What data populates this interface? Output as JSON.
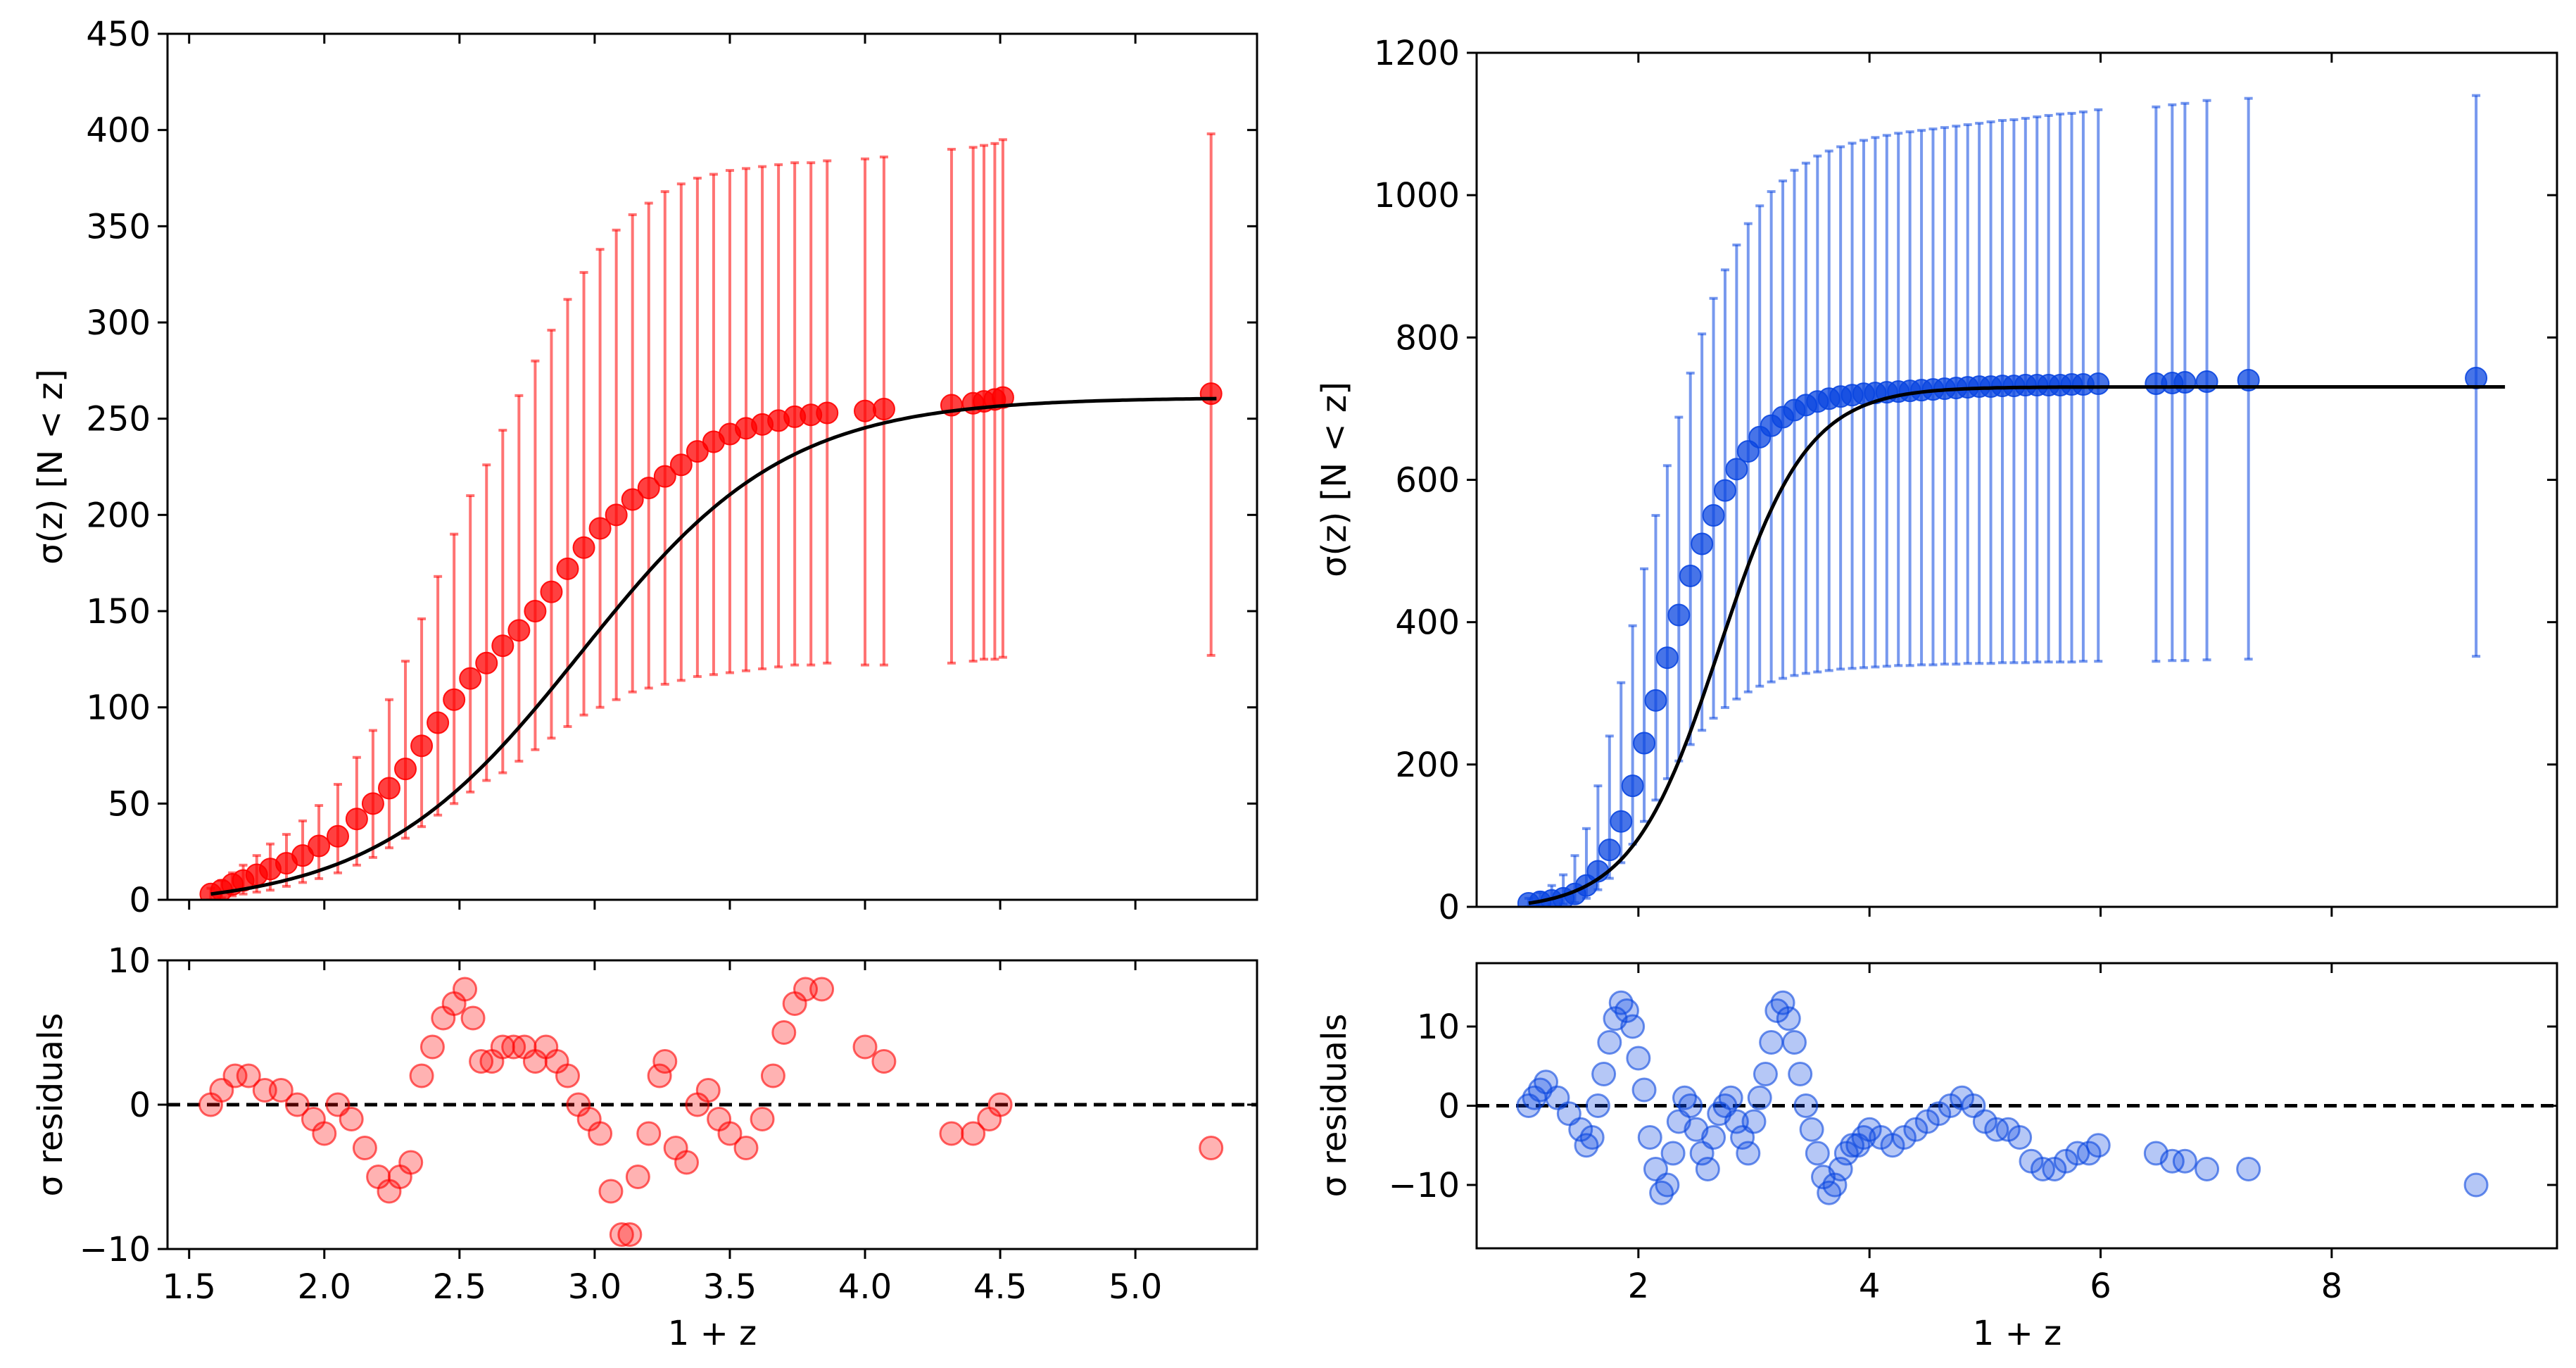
{
  "colors": {
    "red": "#ff0000",
    "blue": "#0a46e0",
    "fit": "#000000",
    "zero_line": "#000000"
  },
  "chart_data": [
    {
      "id": "left-main",
      "type": "scatter",
      "panel": "left",
      "xlabel": "",
      "ylabel": "σ(z) [N < z]",
      "xlim": [
        1.42,
        5.45
      ],
      "ylim": [
        0,
        450
      ],
      "xticks": [
        1.5,
        2.0,
        2.5,
        3.0,
        3.5,
        4.0,
        4.5,
        5.0
      ],
      "yticks": [
        0,
        50,
        100,
        150,
        200,
        250,
        300,
        350,
        400,
        450
      ],
      "ytick_labels": [
        "0",
        "50",
        "100",
        "150",
        "200",
        "250",
        "300",
        "350",
        "400",
        "450"
      ],
      "fit": {
        "type": "logistic",
        "A": 265,
        "x0": 2.95,
        "s": 0.38
      },
      "series": [
        {
          "name": "data",
          "color": "#ff0000",
          "x": [
            1.58,
            1.62,
            1.66,
            1.7,
            1.75,
            1.8,
            1.86,
            1.92,
            1.98,
            2.05,
            2.12,
            2.18,
            2.24,
            2.3,
            2.36,
            2.42,
            2.48,
            2.54,
            2.6,
            2.66,
            2.72,
            2.78,
            2.84,
            2.9,
            2.96,
            3.02,
            3.08,
            3.14,
            3.2,
            3.26,
            3.32,
            3.38,
            3.44,
            3.5,
            3.56,
            3.62,
            3.68,
            3.74,
            3.8,
            3.86,
            4.0,
            4.07,
            4.32,
            4.4,
            4.44,
            4.48,
            4.51,
            5.28
          ],
          "y": [
            3,
            5,
            8,
            10,
            13,
            16,
            19,
            23,
            28,
            33,
            42,
            50,
            58,
            68,
            80,
            92,
            104,
            115,
            123,
            132,
            140,
            150,
            160,
            172,
            183,
            193,
            200,
            208,
            214,
            220,
            226,
            233,
            238,
            242,
            245,
            247,
            249,
            251,
            252,
            253,
            254,
            255,
            257,
            258,
            259,
            260,
            261,
            263
          ],
          "yerr_low": [
            0,
            1,
            2,
            3,
            4,
            5,
            7,
            9,
            11,
            14,
            18,
            22,
            27,
            32,
            38,
            44,
            50,
            56,
            62,
            66,
            72,
            78,
            84,
            90,
            96,
            100,
            104,
            108,
            110,
            112,
            114,
            116,
            117,
            118,
            119,
            120,
            121,
            122,
            122,
            123,
            122,
            122,
            123,
            124,
            125,
            125,
            126,
            127
          ],
          "yerr_high": [
            6,
            10,
            14,
            18,
            23,
            29,
            34,
            41,
            49,
            60,
            74,
            88,
            104,
            124,
            146,
            168,
            190,
            210,
            226,
            244,
            262,
            280,
            296,
            312,
            326,
            338,
            348,
            356,
            362,
            368,
            372,
            375,
            377,
            379,
            380,
            381,
            382,
            383,
            383,
            384,
            385,
            386,
            390,
            391,
            392,
            393,
            395,
            398
          ]
        }
      ]
    },
    {
      "id": "left-resid",
      "type": "scatter",
      "panel": "left",
      "xlabel": "1 + z",
      "ylabel": "σ residuals",
      "xlim": [
        1.42,
        5.45
      ],
      "ylim": [
        -10,
        10
      ],
      "xticks": [
        1.5,
        2.0,
        2.5,
        3.0,
        3.5,
        4.0,
        4.5,
        5.0
      ],
      "xtick_labels": [
        "1.5",
        "2.0",
        "2.5",
        "3.0",
        "3.5",
        "4.0",
        "4.5",
        "5.0"
      ],
      "yticks": [
        -10,
        0,
        10
      ],
      "ytick_labels": [
        "−10",
        "0",
        "10"
      ],
      "zero_line": true,
      "series": [
        {
          "name": "residuals",
          "color": "#ff0000",
          "x": [
            1.58,
            1.62,
            1.67,
            1.72,
            1.78,
            1.84,
            1.9,
            1.96,
            2.0,
            2.05,
            2.1,
            2.15,
            2.2,
            2.24,
            2.28,
            2.32,
            2.36,
            2.4,
            2.44,
            2.48,
            2.52,
            2.55,
            2.58,
            2.62,
            2.66,
            2.7,
            2.74,
            2.78,
            2.82,
            2.86,
            2.9,
            2.94,
            2.98,
            3.02,
            3.06,
            3.1,
            3.13,
            3.16,
            3.2,
            3.24,
            3.26,
            3.3,
            3.34,
            3.38,
            3.42,
            3.46,
            3.5,
            3.56,
            3.62,
            3.66,
            3.7,
            3.74,
            3.78,
            3.84,
            4.0,
            4.07,
            4.32,
            4.4,
            4.46,
            4.5,
            5.28
          ],
          "y": [
            0,
            1,
            2,
            2,
            1,
            1,
            0,
            -1,
            -2,
            0,
            -1,
            -3,
            -5,
            -6,
            -5,
            -4,
            2,
            4,
            6,
            7,
            8,
            6,
            3,
            3,
            4,
            4,
            4,
            3,
            4,
            3,
            2,
            0,
            -1,
            -2,
            -6,
            -9,
            -9,
            -5,
            -2,
            2,
            3,
            -3,
            -4,
            0,
            1,
            -1,
            -2,
            -3,
            -1,
            2,
            5,
            7,
            8,
            8,
            4,
            3,
            -2,
            -2,
            -1,
            0,
            -3
          ]
        }
      ]
    },
    {
      "id": "right-main",
      "type": "scatter",
      "panel": "right",
      "xlabel": "",
      "ylabel": "σ(z) [N < z]",
      "xlim": [
        0.6,
        9.95
      ],
      "ylim": [
        0,
        1200
      ],
      "xticks": [
        2,
        4,
        6,
        8
      ],
      "yticks": [
        0,
        200,
        400,
        600,
        800,
        1000,
        1200
      ],
      "ytick_labels": [
        "0",
        "200",
        "400",
        "600",
        "800",
        "1000",
        "1200"
      ],
      "fit": {
        "type": "logistic",
        "A": 735,
        "x0": 2.7,
        "s": 0.38
      },
      "series": [
        {
          "name": "data",
          "color": "#0a46e0",
          "x": [
            1.05,
            1.15,
            1.25,
            1.35,
            1.45,
            1.55,
            1.65,
            1.75,
            1.85,
            1.95,
            2.05,
            2.15,
            2.25,
            2.35,
            2.45,
            2.55,
            2.65,
            2.75,
            2.85,
            2.95,
            3.05,
            3.15,
            3.25,
            3.35,
            3.45,
            3.55,
            3.65,
            3.75,
            3.85,
            3.95,
            4.05,
            4.15,
            4.25,
            4.35,
            4.45,
            4.55,
            4.65,
            4.75,
            4.85,
            4.95,
            5.05,
            5.15,
            5.25,
            5.35,
            5.45,
            5.55,
            5.65,
            5.75,
            5.85,
            5.98,
            6.48,
            6.62,
            6.73,
            6.92,
            7.28,
            9.25
          ],
          "y": [
            5,
            7,
            9,
            12,
            18,
            30,
            50,
            80,
            120,
            170,
            230,
            290,
            350,
            410,
            465,
            510,
            550,
            585,
            615,
            640,
            660,
            676,
            688,
            698,
            705,
            710,
            714,
            717,
            719,
            721,
            722,
            723,
            724,
            725,
            726,
            727,
            728,
            729,
            730,
            731,
            731,
            732,
            732,
            733,
            733,
            733,
            733,
            734,
            734,
            735,
            735,
            736,
            737,
            738,
            740,
            743
          ],
          "yerr_low": [
            0,
            2,
            3,
            4,
            6,
            12,
            24,
            40,
            62,
            88,
            120,
            150,
            180,
            205,
            228,
            248,
            265,
            280,
            292,
            302,
            310,
            316,
            321,
            325,
            328,
            330,
            332,
            334,
            335,
            336,
            337,
            338,
            339,
            339,
            340,
            340,
            341,
            341,
            342,
            342,
            342,
            343,
            343,
            343,
            344,
            344,
            344,
            344,
            345,
            345,
            345,
            346,
            346,
            347,
            348,
            352
          ],
          "yerr_high": [
            12,
            20,
            30,
            45,
            72,
            110,
            170,
            240,
            315,
            395,
            475,
            550,
            620,
            688,
            750,
            805,
            855,
            895,
            930,
            960,
            985,
            1005,
            1020,
            1035,
            1045,
            1055,
            1062,
            1068,
            1073,
            1077,
            1081,
            1084,
            1087,
            1089,
            1091,
            1093,
            1095,
            1097,
            1099,
            1101,
            1103,
            1105,
            1106,
            1108,
            1110,
            1112,
            1114,
            1115,
            1117,
            1120,
            1124,
            1127,
            1129,
            1133,
            1136,
            1140
          ]
        }
      ]
    },
    {
      "id": "right-resid",
      "type": "scatter",
      "panel": "right",
      "xlabel": "1 + z",
      "ylabel": "σ residuals",
      "xlim": [
        0.6,
        9.95
      ],
      "ylim": [
        -18,
        18
      ],
      "xticks": [
        2,
        4,
        6,
        8
      ],
      "xtick_labels": [
        "2",
        "4",
        "6",
        "8"
      ],
      "yticks": [
        -10,
        0,
        10
      ],
      "ytick_labels": [
        "−10",
        "0",
        "10"
      ],
      "zero_line": true,
      "series": [
        {
          "name": "residuals",
          "color": "#0a46e0",
          "x": [
            1.05,
            1.1,
            1.15,
            1.2,
            1.3,
            1.4,
            1.5,
            1.55,
            1.6,
            1.65,
            1.7,
            1.75,
            1.8,
            1.85,
            1.9,
            1.95,
            2.0,
            2.05,
            2.1,
            2.15,
            2.2,
            2.25,
            2.3,
            2.35,
            2.4,
            2.45,
            2.5,
            2.55,
            2.6,
            2.65,
            2.7,
            2.75,
            2.8,
            2.85,
            2.9,
            2.95,
            3.0,
            3.05,
            3.1,
            3.15,
            3.2,
            3.25,
            3.3,
            3.35,
            3.4,
            3.45,
            3.5,
            3.55,
            3.6,
            3.65,
            3.7,
            3.75,
            3.8,
            3.85,
            3.9,
            3.95,
            4.0,
            4.1,
            4.2,
            4.3,
            4.4,
            4.5,
            4.6,
            4.7,
            4.8,
            4.9,
            5.0,
            5.1,
            5.2,
            5.3,
            5.4,
            5.5,
            5.6,
            5.7,
            5.8,
            5.9,
            5.98,
            6.48,
            6.62,
            6.73,
            6.92,
            7.28,
            9.25
          ],
          "y": [
            0,
            1,
            2,
            3,
            1,
            -1,
            -3,
            -5,
            -4,
            0,
            4,
            8,
            11,
            13,
            12,
            10,
            6,
            2,
            -4,
            -8,
            -11,
            -10,
            -6,
            -2,
            1,
            0,
            -3,
            -6,
            -8,
            -4,
            -1,
            0,
            1,
            -2,
            -4,
            -6,
            -2,
            1,
            4,
            8,
            12,
            13,
            11,
            8,
            4,
            0,
            -3,
            -6,
            -9,
            -11,
            -10,
            -8,
            -6,
            -5,
            -5,
            -4,
            -3,
            -4,
            -5,
            -4,
            -3,
            -2,
            -1,
            0,
            1,
            0,
            -2,
            -3,
            -3,
            -4,
            -7,
            -8,
            -8,
            -7,
            -6,
            -6,
            -5,
            -6,
            -7,
            -7,
            -8,
            -8,
            -10
          ]
        }
      ]
    }
  ]
}
